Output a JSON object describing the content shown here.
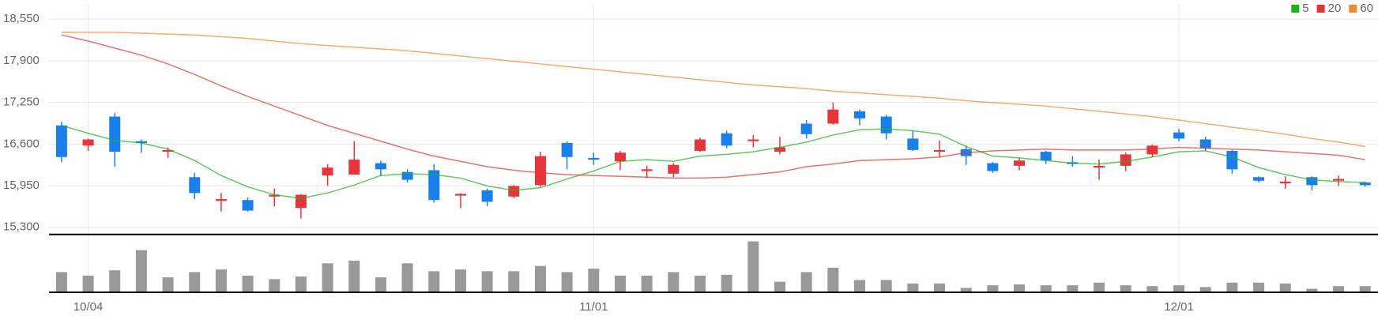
{
  "chart_data": {
    "type": "candlestick",
    "categories": [
      null,
      "10/04",
      null,
      null,
      null,
      null,
      null,
      null,
      null,
      null,
      null,
      null,
      null,
      null,
      null,
      null,
      null,
      null,
      null,
      null,
      "11/01",
      null,
      null,
      null,
      null,
      null,
      null,
      null,
      null,
      null,
      null,
      null,
      null,
      null,
      null,
      null,
      null,
      null,
      null,
      null,
      null,
      null,
      "12/01",
      null,
      null,
      null,
      null,
      null,
      null,
      null
    ],
    "open": [
      16891,
      16576,
      17029,
      16645,
      16480,
      16083,
      15713,
      15726,
      15781,
      15603,
      16110,
      16124,
      16302,
      16165,
      16192,
      15795,
      15877,
      15781,
      15959,
      16617,
      16384,
      16329,
      16179,
      16138,
      16494,
      16768,
      16645,
      16480,
      16919,
      16919,
      17111,
      17029,
      16686,
      16480,
      16521,
      16302,
      16261,
      16480,
      16316,
      16233,
      16261,
      16439,
      16782,
      16672,
      16494,
      16083,
      15987,
      16083,
      16028,
      16000
    ],
    "high": [
      16946,
      16686,
      17084,
      16672,
      16549,
      16151,
      15836,
      15767,
      15905,
      15822,
      16288,
      16645,
      16343,
      16206,
      16288,
      15836,
      15905,
      15960,
      16480,
      16645,
      16466,
      16494,
      16261,
      16302,
      16700,
      16809,
      16741,
      16713,
      16974,
      17248,
      17139,
      17056,
      16809,
      16658,
      16576,
      16316,
      16384,
      16494,
      16412,
      16357,
      16466,
      16590,
      16837,
      16713,
      16508,
      16096,
      16096,
      16096,
      16110,
      16014
    ],
    "low": [
      16316,
      16494,
      16247,
      16466,
      16384,
      15740,
      15548,
      15548,
      15630,
      15438,
      15946,
      16124,
      16096,
      16000,
      15685,
      15603,
      15630,
      15753,
      15932,
      16206,
      16275,
      16192,
      16069,
      16083,
      16480,
      16535,
      16549,
      16439,
      16686,
      16905,
      16892,
      16672,
      16494,
      16398,
      16275,
      16151,
      16192,
      16288,
      16247,
      16042,
      16179,
      16398,
      16645,
      16494,
      16138,
      16000,
      15905,
      15877,
      15946,
      15932
    ],
    "close": [
      16398,
      16672,
      16480,
      16617,
      16507,
      15836,
      15740,
      15562,
      15808,
      15808,
      16233,
      16357,
      16206,
      16042,
      15726,
      15822,
      15699,
      15946,
      16412,
      16398,
      16357,
      16466,
      16206,
      16275,
      16672,
      16576,
      16672,
      16549,
      16755,
      17139,
      17001,
      16768,
      16508,
      16507,
      16412,
      16179,
      16343,
      16343,
      16288,
      16261,
      16439,
      16576,
      16686,
      16535,
      16206,
      16028,
      16014,
      15959,
      16055,
      15959
    ],
    "up_color": "#e8343b",
    "down_color": "#1a7fea",
    "ylim": [
      15190,
      18780
    ],
    "yticks": [
      {
        "value": 15300,
        "label": "15,300"
      },
      {
        "value": 15950,
        "label": "15,950"
      },
      {
        "value": 16600,
        "label": "16,600"
      },
      {
        "value": 17250,
        "label": "17,250"
      },
      {
        "value": 17900,
        "label": "17,900"
      },
      {
        "value": 18550,
        "label": "18,550"
      }
    ],
    "grid": true,
    "legend": "top-right",
    "series": [
      {
        "name": "5",
        "color": "#1db31d",
        "values": [
          16891,
          16768,
          16658,
          16617,
          16521,
          16343,
          16110,
          15932,
          15809,
          15754,
          15836,
          15959,
          16110,
          16137,
          16124,
          16069,
          15946,
          15877,
          15918,
          16055,
          16179,
          16330,
          16357,
          16330,
          16412,
          16439,
          16480,
          16549,
          16631,
          16741,
          16823,
          16837,
          16809,
          16754,
          16562,
          16412,
          16384,
          16343,
          16302,
          16288,
          16330,
          16398,
          16480,
          16494,
          16398,
          16233,
          16124,
          16042,
          16014,
          16000
        ]
      },
      {
        "name": "20",
        "color": "#e3342f",
        "values": [
          18304,
          18208,
          18098,
          17988,
          17851,
          17687,
          17508,
          17344,
          17193,
          17042,
          16891,
          16768,
          16645,
          16521,
          16412,
          16330,
          16247,
          16192,
          16151,
          16124,
          16110,
          16096,
          16083,
          16069,
          16069,
          16083,
          16124,
          16165,
          16247,
          16288,
          16343,
          16357,
          16370,
          16398,
          16466,
          16494,
          16507,
          16521,
          16507,
          16507,
          16507,
          16521,
          16549,
          16535,
          16521,
          16507,
          16480,
          16453,
          16425,
          16357
        ]
      },
      {
        "name": "60",
        "color": "#f08a2c",
        "values": [
          18345,
          18345,
          18345,
          18331,
          18317,
          18304,
          18276,
          18249,
          18208,
          18167,
          18139,
          18112,
          18084,
          18057,
          18016,
          17975,
          17934,
          17892,
          17851,
          17810,
          17769,
          17728,
          17687,
          17646,
          17604,
          17563,
          17522,
          17495,
          17467,
          17426,
          17399,
          17371,
          17344,
          17317,
          17276,
          17248,
          17221,
          17193,
          17152,
          17111,
          17070,
          17029,
          16974,
          16919,
          16864,
          16811,
          16754,
          16686,
          16631,
          16562
        ]
      }
    ],
    "volume": {
      "color": "#999999",
      "ylim": [
        0,
        60
      ],
      "values": [
        23,
        19,
        25,
        48,
        17,
        23,
        26,
        19,
        15,
        18,
        33,
        36,
        17,
        33,
        24,
        26,
        24,
        24,
        30,
        23,
        27,
        19,
        19,
        23,
        19,
        20,
        58,
        12,
        23,
        28,
        14,
        14,
        10,
        10,
        5,
        8,
        9,
        8,
        8,
        11,
        8,
        7,
        8,
        6,
        11,
        11,
        10,
        4,
        7,
        7
      ]
    }
  }
}
